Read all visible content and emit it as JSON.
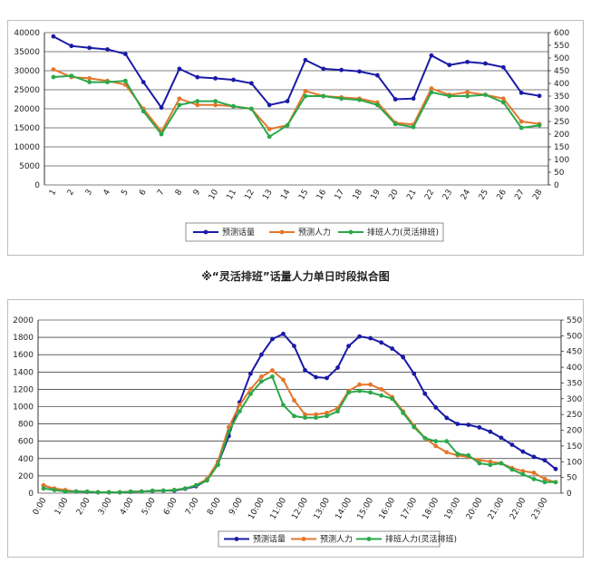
{
  "caption": "※“灵活排班”话量人力单日时段拟合图",
  "colors": {
    "forecast_calls": "#1a1aa6",
    "forecast_staff": "#e4762b",
    "scheduled_staff": "#2aa84a"
  },
  "chart_data": [
    {
      "type": "line",
      "x": [
        "1",
        "2",
        "3",
        "4",
        "5",
        "6",
        "7",
        "8",
        "9",
        "10",
        "11",
        "12",
        "13",
        "14",
        "15",
        "16",
        "17",
        "18",
        "19",
        "20",
        "21",
        "22",
        "23",
        "24",
        "25",
        "26",
        "27",
        "28"
      ],
      "ylim_left": [
        0,
        40000
      ],
      "yticks_left": [
        0,
        5000,
        10000,
        15000,
        20000,
        25000,
        30000,
        35000,
        40000
      ],
      "ylim_right": [
        0,
        600
      ],
      "yticks_right": [
        0,
        50,
        100,
        150,
        200,
        250,
        300,
        350,
        400,
        450,
        500,
        550,
        600
      ],
      "legend": [
        "预测话量",
        "预测人力",
        "排班人力(灵活排班)"
      ],
      "series": [
        {
          "name": "预测话量",
          "axis": "left",
          "values": [
            39000,
            36500,
            36000,
            35600,
            34400,
            27000,
            20300,
            30500,
            28300,
            28000,
            27600,
            26700,
            21000,
            22000,
            32800,
            30500,
            30200,
            29800,
            28800,
            22500,
            22700,
            34000,
            31500,
            32300,
            31900,
            30900,
            24200,
            23400
          ]
        },
        {
          "name": "预测人力",
          "axis": "right",
          "values": [
            455,
            425,
            420,
            410,
            395,
            300,
            210,
            340,
            315,
            315,
            310,
            300,
            220,
            235,
            370,
            350,
            345,
            340,
            325,
            245,
            238,
            380,
            355,
            365,
            355,
            340,
            250,
            240
          ]
        },
        {
          "name": "排班人力(灵活排班)",
          "axis": "right",
          "values": [
            425,
            430,
            405,
            405,
            410,
            290,
            200,
            315,
            330,
            330,
            310,
            300,
            190,
            235,
            350,
            350,
            340,
            335,
            315,
            240,
            228,
            365,
            350,
            350,
            355,
            325,
            225,
            235
          ]
        }
      ]
    },
    {
      "type": "line",
      "x": [
        "0:00",
        "0:30",
        "1:00",
        "1:30",
        "2:00",
        "2:30",
        "3:00",
        "3:30",
        "4:00",
        "4:30",
        "5:00",
        "5:30",
        "6:00",
        "6:30",
        "7:00",
        "7:30",
        "8:00",
        "8:30",
        "9:00",
        "9:30",
        "10:00",
        "10:30",
        "11:00",
        "11:30",
        "12:00",
        "12:30",
        "13:00",
        "13:30",
        "14:00",
        "14:30",
        "15:00",
        "15:30",
        "16:00",
        "16:30",
        "17:00",
        "17:30",
        "18:00",
        "18:30",
        "19:00",
        "19:30",
        "20:00",
        "20:30",
        "21:00",
        "21:30",
        "22:00",
        "22:30",
        "23:00",
        "23:30"
      ],
      "xtick_labels": [
        "0:00",
        "1:00",
        "2:00",
        "3:00",
        "4:00",
        "5:00",
        "6:00",
        "7:00",
        "8:00",
        "9:00",
        "10:00",
        "11:00",
        "12:00",
        "13:00",
        "14:00",
        "15:00",
        "16:00",
        "17:00",
        "18:00",
        "19:00",
        "20:00",
        "21:00",
        "22:00",
        "23:00"
      ],
      "ylim_left": [
        0,
        2000
      ],
      "yticks_left": [
        0,
        200,
        400,
        600,
        800,
        1000,
        1200,
        1400,
        1600,
        1800,
        2000
      ],
      "ylim_right": [
        0,
        550
      ],
      "yticks_right": [
        0,
        50,
        100,
        150,
        200,
        250,
        300,
        350,
        400,
        450,
        500,
        550
      ],
      "legend": [
        "预测话量",
        "预测人力",
        "排班人力(灵活排班)"
      ],
      "series": [
        {
          "name": "预测话量",
          "axis": "left",
          "values": [
            90,
            50,
            30,
            20,
            15,
            10,
            10,
            10,
            15,
            20,
            25,
            30,
            30,
            50,
            80,
            150,
            330,
            660,
            1050,
            1380,
            1600,
            1780,
            1840,
            1700,
            1420,
            1340,
            1330,
            1450,
            1700,
            1810,
            1790,
            1740,
            1670,
            1570,
            1380,
            1150,
            990,
            870,
            800,
            790,
            760,
            710,
            640,
            560,
            480,
            420,
            380,
            280
          ]
        },
        {
          "name": "预测人力",
          "axis": "right",
          "values": [
            25,
            15,
            10,
            5,
            5,
            3,
            3,
            3,
            5,
            5,
            8,
            8,
            10,
            15,
            25,
            45,
            100,
            210,
            280,
            330,
            370,
            390,
            360,
            295,
            250,
            250,
            255,
            270,
            325,
            345,
            345,
            330,
            305,
            260,
            215,
            175,
            150,
            130,
            120,
            115,
            105,
            100,
            95,
            80,
            70,
            65,
            45,
            35
          ]
        },
        {
          "name": "排班人力(灵活排班)",
          "axis": "right",
          "values": [
            15,
            10,
            5,
            5,
            5,
            3,
            3,
            3,
            5,
            5,
            8,
            8,
            10,
            15,
            25,
            40,
            90,
            195,
            260,
            315,
            355,
            370,
            280,
            245,
            240,
            240,
            245,
            260,
            320,
            325,
            320,
            310,
            300,
            255,
            210,
            175,
            165,
            165,
            125,
            120,
            95,
            90,
            95,
            75,
            60,
            45,
            35,
            35
          ]
        }
      ]
    }
  ]
}
